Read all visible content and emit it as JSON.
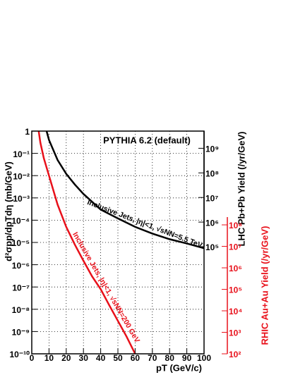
{
  "chart_data": {
    "type": "line",
    "title": "PYTHIA 6.2 (default)",
    "x_label": "pT (GeV/c)",
    "y_label": "d²σpp/dpTdη (mb/GeV)",
    "y2_label": "LHC Pb+Pb Yield (/yr/GeV)",
    "y3_label": "RHIC Au+Au Yield (/yr/GeV)",
    "log_y": true,
    "grid": true,
    "xlim": [
      0,
      100
    ],
    "xticks": [
      0,
      10,
      20,
      30,
      40,
      50,
      60,
      70,
      80,
      90,
      100
    ],
    "ylim": [
      1e-10,
      1
    ],
    "yticks": [
      1,
      {
        "value": 0.1,
        "label": "10⁻¹"
      },
      {
        "value": 0.01,
        "label": "10⁻²"
      },
      {
        "value": 0.001,
        "label": "10⁻³"
      },
      {
        "value": 0.0001,
        "label": "10⁻⁴"
      },
      {
        "value": 1e-05,
        "label": "10⁻⁵"
      },
      {
        "value": 1e-06,
        "label": "10⁻⁶"
      },
      {
        "value": 1e-07,
        "label": "10⁻⁷"
      },
      {
        "value": 1e-08,
        "label": "10⁻⁸"
      },
      {
        "value": 1e-09,
        "label": "10⁻⁹"
      },
      {
        "value": 1e-10,
        "label": "10⁻¹⁰"
      }
    ],
    "y2lim": [
      100000,
      5000000000
    ],
    "y2ticks": [
      {
        "value": 100000,
        "label": "10⁵"
      },
      {
        "value": 1000000,
        "label": "10⁶"
      },
      {
        "value": 10000000,
        "label": "10⁷"
      },
      {
        "value": 100000000,
        "label": "10⁸"
      },
      {
        "value": 1000000000,
        "label": "10⁹"
      }
    ],
    "y3lim": [
      100,
      230000000
    ],
    "y3ticks": [
      {
        "value": 100,
        "label": "10²"
      },
      {
        "value": 1000,
        "label": "10³"
      },
      {
        "value": 10000,
        "label": "10⁴"
      },
      {
        "value": 100000,
        "label": "10⁵"
      },
      {
        "value": 1000000,
        "label": "10⁶"
      },
      {
        "value": 10000000,
        "label": "10⁷"
      },
      {
        "value": 100000000,
        "label": "10⁸"
      }
    ],
    "series": [
      {
        "name": "Inclusive Jets, |η|<1, √sNN=5.5 TeV",
        "color": "#000000",
        "x": [
          8.6,
          10,
          15,
          20,
          25,
          30,
          40,
          50,
          60,
          70,
          80,
          90,
          100
        ],
        "values": [
          1,
          0.4,
          0.05,
          0.012,
          0.004,
          0.0015,
          0.0003,
          0.00012,
          5e-05,
          2.5e-05,
          1.4e-05,
          9e-06,
          5.5e-06
        ]
      },
      {
        "name": "Inclusive Jets, |η|<1, √sNN=200 GeV",
        "color": "#e8101a",
        "x": [
          4,
          5,
          7,
          10,
          15,
          20,
          25,
          30,
          35,
          40,
          45,
          50,
          55,
          60
        ],
        "values": [
          1,
          0.3,
          0.06,
          0.01,
          0.0005,
          5e-05,
          8e-06,
          1.5e-06,
          3e-07,
          8e-08,
          1.5e-08,
          3e-09,
          6e-10,
          1e-10
        ]
      }
    ]
  }
}
